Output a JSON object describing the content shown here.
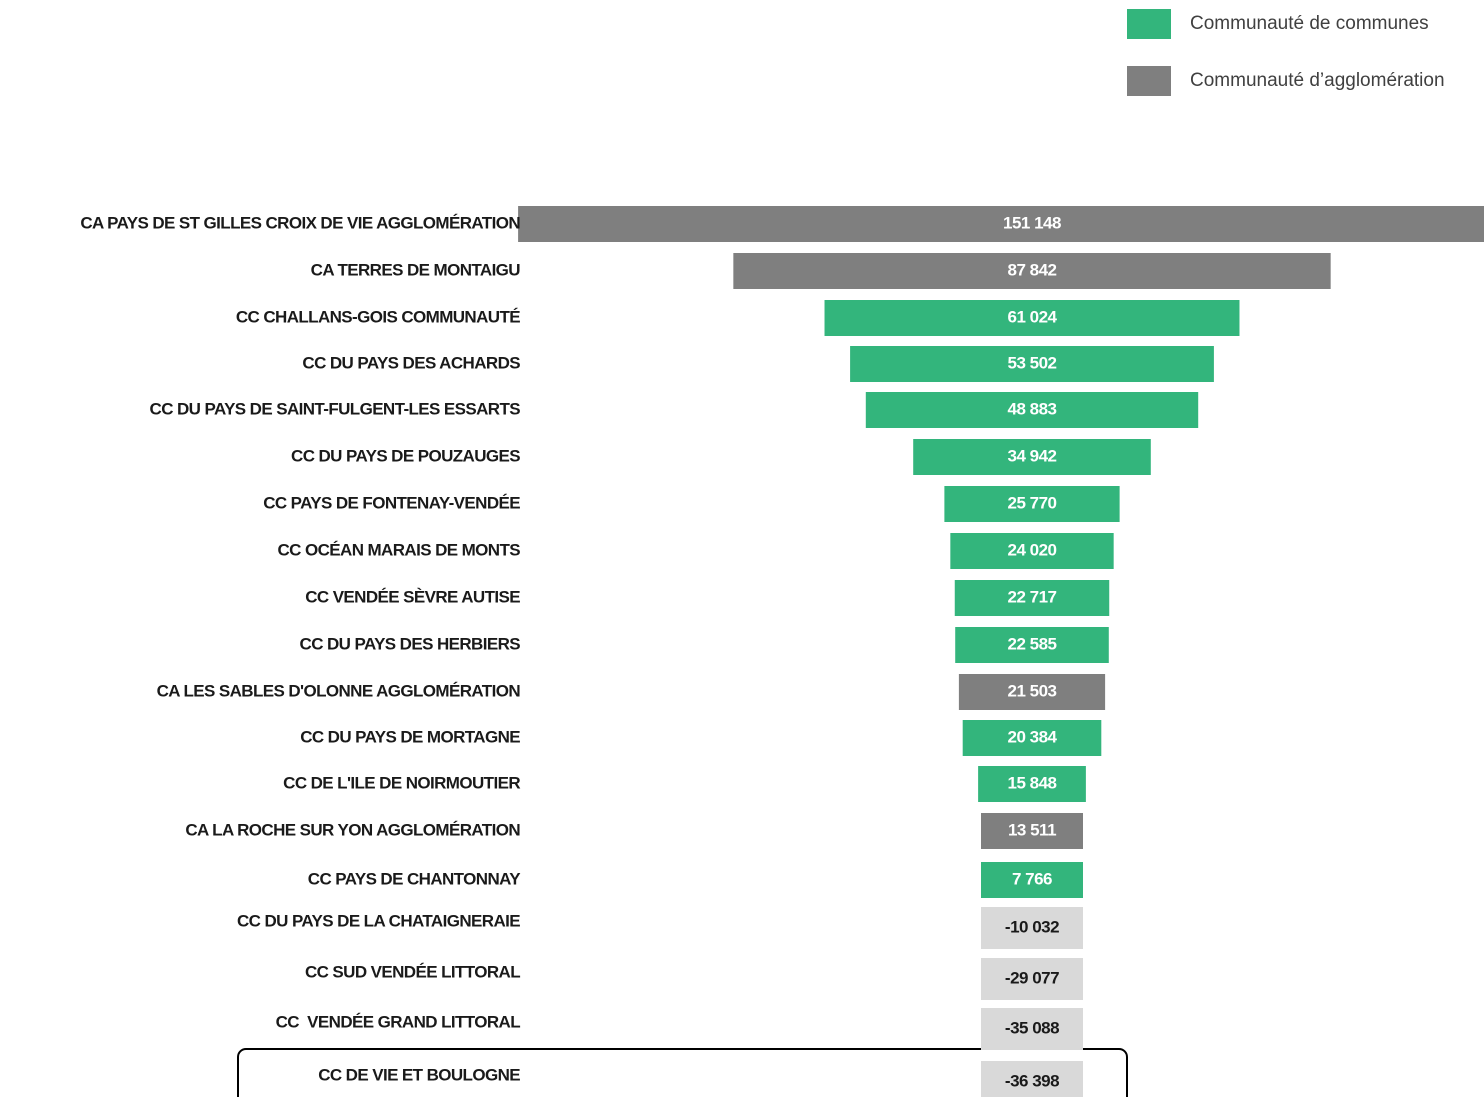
{
  "chart_data": {
    "type": "funnel",
    "legend": [
      {
        "name": "Communauté de communes",
        "color": "#33b57c"
      },
      {
        "name": "Communauté d’agglomération",
        "color": "#7f7f7f"
      }
    ],
    "categories": [
      "CA PAYS DE ST GILLES CROIX DE VIE AGGLOMÉRATION",
      "CA TERRES DE MONTAIGU",
      "CC CHALLANS-GOIS COMMUNAUTÉ",
      "CC DU PAYS DES ACHARDS",
      "CC DU PAYS DE SAINT-FULGENT-LES ESSARTS",
      "CC DU PAYS DE POUZAUGES",
      "CC PAYS DE FONTENAY-VENDÉE",
      "CC OCÉAN MARAIS DE MONTS",
      "CC VENDÉE SÈVRE AUTISE",
      "CC DU PAYS DES HERBIERS",
      "CA LES SABLES D'OLONNE AGGLOMÉRATION",
      "CC DU PAYS DE MORTAGNE",
      "CC DE L'ILE DE NOIRMOUTIER",
      "CA LA ROCHE SUR YON AGGLOMÉRATION",
      "CC PAYS DE CHANTONNAY",
      "CC DU PAYS DE LA CHATAIGNERAIE",
      "CC SUD VENDÉE LITTORAL",
      "CC  VENDÉE GRAND LITTORAL",
      "CC DE VIE ET BOULOGNE"
    ],
    "values": [
      151148,
      87842,
      61024,
      53502,
      48883,
      34942,
      25770,
      24020,
      22717,
      22585,
      21503,
      20384,
      15848,
      13511,
      7766,
      -10032,
      -29077,
      -35088,
      -36398
    ],
    "value_labels": [
      "151 148",
      "87 842",
      "61 024",
      "53 502",
      "48 883",
      "34 942",
      "25 770",
      "24 020",
      "22 717",
      "22 585",
      "21 503",
      "20 384",
      "15 848",
      "13 511",
      "7 766",
      "-10 032",
      "-29 077",
      "-35 088",
      "-36 398"
    ],
    "colors": [
      "#7f7f7f",
      "#7f7f7f",
      "#33b57c",
      "#33b57c",
      "#33b57c",
      "#33b57c",
      "#33b57c",
      "#33b57c",
      "#33b57c",
      "#33b57c",
      "#7f7f7f",
      "#33b57c",
      "#33b57c",
      "#7f7f7f",
      "#33b57c",
      "#d9d9d9",
      "#d9d9d9",
      "#d9d9d9",
      "#d9d9d9"
    ]
  }
}
